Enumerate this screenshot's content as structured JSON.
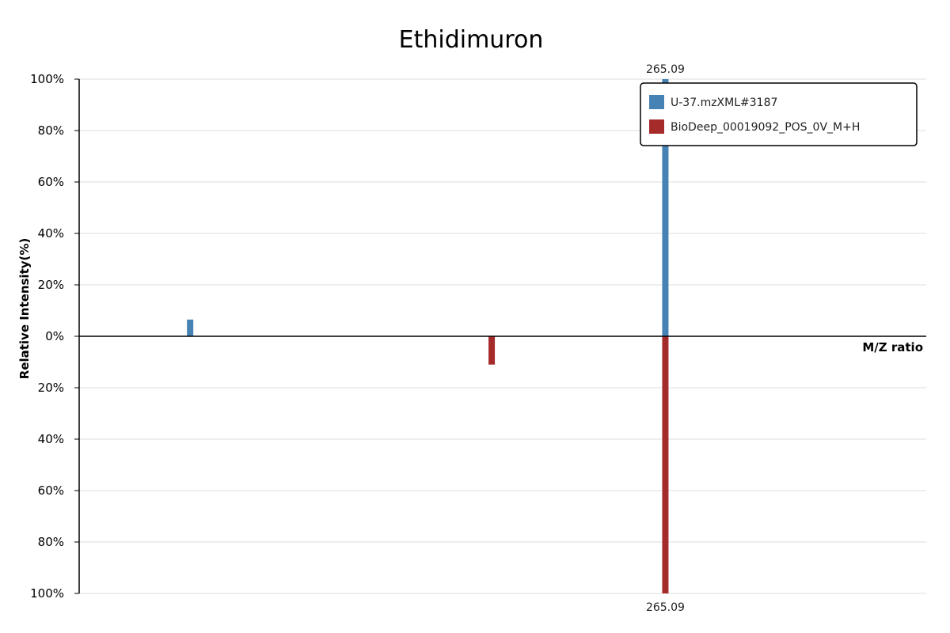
{
  "chart_data": {
    "type": "bar",
    "title": "Ethidimuron",
    "xlabel": "M/Z ratio",
    "ylabel": "Relative Intensity(%)",
    "y_ticks_top": [
      "100%",
      "80%",
      "60%",
      "40%",
      "20%",
      "0%"
    ],
    "y_ticks_bottom": [
      "20%",
      "40%",
      "60%",
      "80%",
      "100%"
    ],
    "ylim": [
      -100,
      100
    ],
    "xlim": [
      0,
      1
    ],
    "grid": true,
    "legend_position": "top-right",
    "series": [
      {
        "name": "U-37.mzXML#3187",
        "color": "#4682b4",
        "direction": "up",
        "peaks": [
          {
            "x": 0.131,
            "y": 6.5,
            "label": ""
          },
          {
            "x": 0.692,
            "y": 100,
            "label": "265.09"
          }
        ]
      },
      {
        "name": "BioDeep_00019092_POS_0V_M+H",
        "color": "#a52a2a",
        "direction": "down",
        "peaks": [
          {
            "x": 0.487,
            "y": 11,
            "label": ""
          },
          {
            "x": 0.692,
            "y": 100,
            "label": "265.09"
          }
        ]
      }
    ]
  }
}
